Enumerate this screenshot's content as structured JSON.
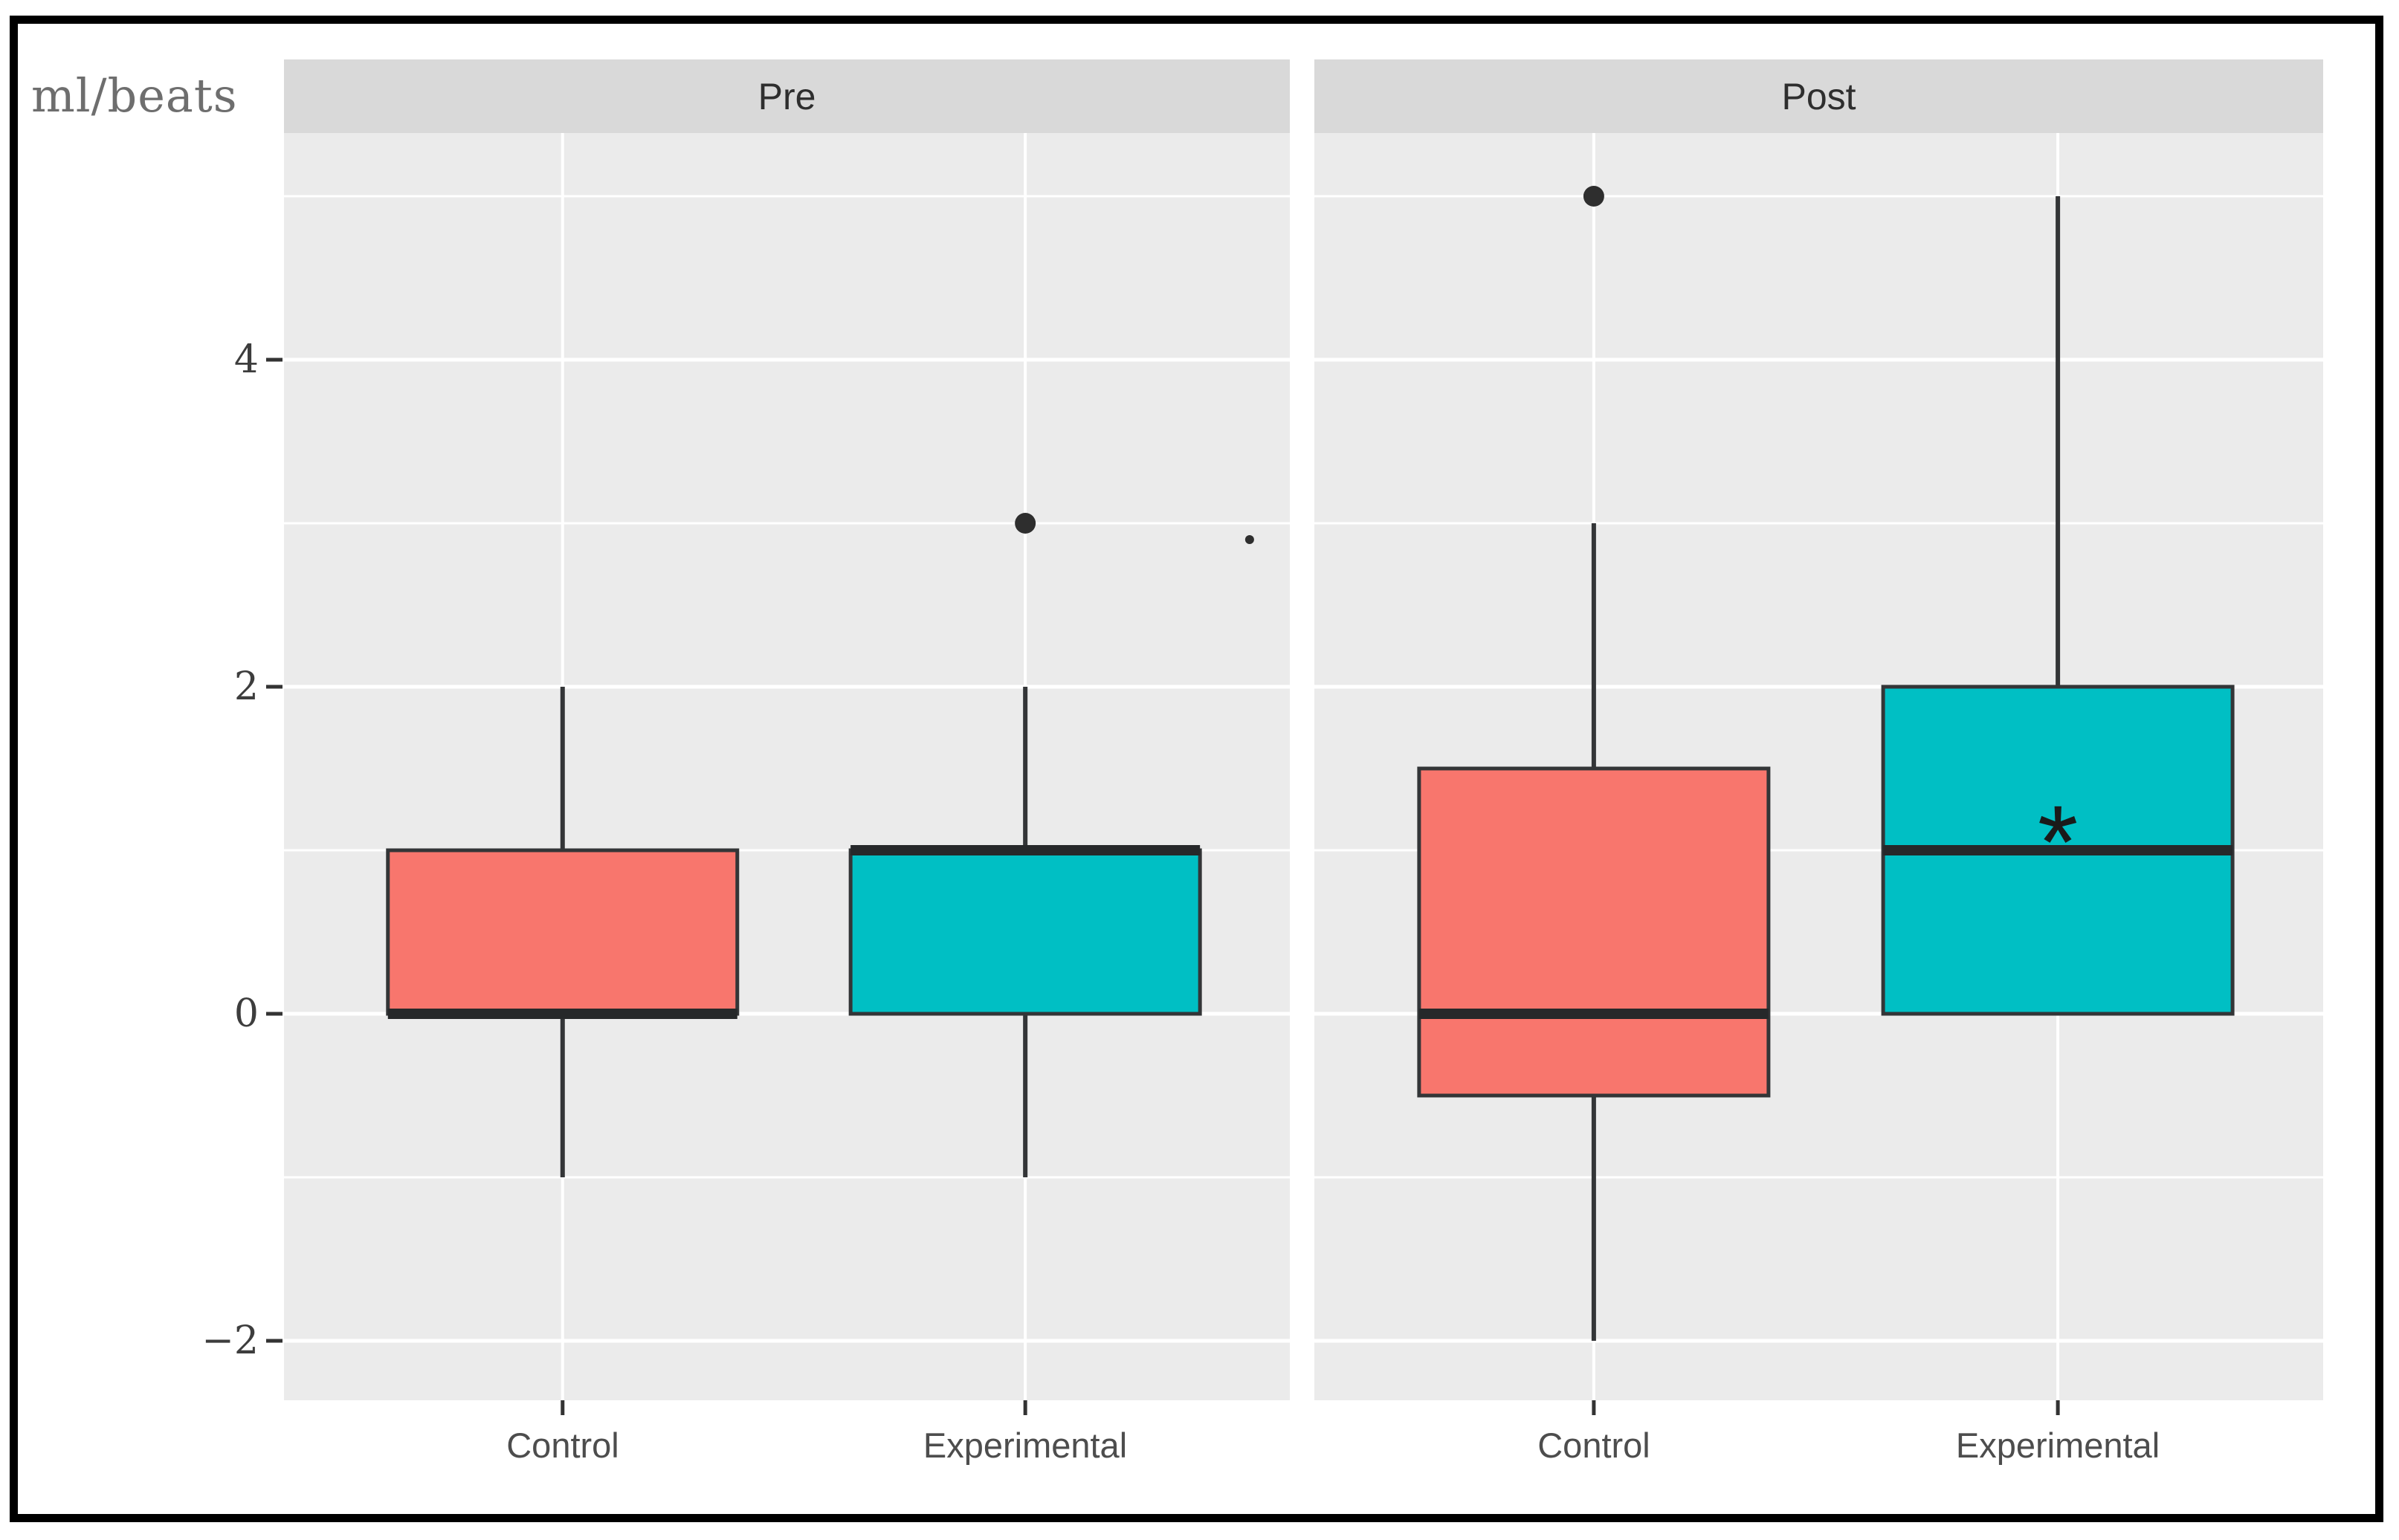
{
  "chart_data": {
    "type": "boxplot",
    "title": "",
    "ylabel": "ml/beats",
    "legend": "none",
    "facets": [
      {
        "label": "Pre",
        "categories": [
          "Control",
          "Experimental"
        ],
        "boxes": [
          {
            "group": "Control",
            "fill": "#F8766D",
            "whisker_low": -1,
            "q1": 0,
            "median": 0,
            "q3": 1,
            "whisker_high": 2,
            "outliers": []
          },
          {
            "group": "Experimental",
            "fill": "#00BFC4",
            "whisker_low": -1,
            "q1": 0,
            "median": 1,
            "q3": 1,
            "whisker_high": 2,
            "outliers": [
              3
            ]
          }
        ],
        "stray_points": [
          {
            "value": 2.9,
            "panel_x_fraction": 0.96,
            "size": "small"
          }
        ]
      },
      {
        "label": "Post",
        "categories": [
          "Control",
          "Experimental"
        ],
        "boxes": [
          {
            "group": "Control",
            "fill": "#F8766D",
            "whisker_low": -2,
            "q1": -0.5,
            "median": 0,
            "q3": 1.5,
            "whisker_high": 3,
            "outliers": [
              5
            ]
          },
          {
            "group": "Experimental",
            "fill": "#00BFC4",
            "whisker_low": 0,
            "q1": 0,
            "median": 1,
            "q3": 2,
            "whisker_high": 5,
            "outliers": [],
            "annotation": {
              "symbol": "*",
              "value": 1.2
            }
          }
        ],
        "stray_points": []
      }
    ],
    "y_axis": {
      "tick_values": [
        4,
        2,
        0,
        -2
      ],
      "tick_labels": [
        "4",
        "2",
        "0",
        "−2"
      ],
      "major_gridlines": [
        4,
        2,
        0,
        -2
      ],
      "minor_gridlines": [
        5,
        3,
        1,
        -1
      ],
      "ylim": [
        -2.4,
        5.4
      ]
    },
    "colors": {
      "control_fill": "#F8766D",
      "experimental_fill": "#00BFC4",
      "box_stroke": "#333537",
      "median_stroke": "#26282a",
      "panel_background": "#EBEBEB",
      "strip_background": "#D9D9D9",
      "gridline": "#FFFFFF",
      "tick": "#333333",
      "outlier": "#2e2e2e",
      "annotation_text": "#1a1a1a",
      "frame_border": "#000000"
    }
  }
}
